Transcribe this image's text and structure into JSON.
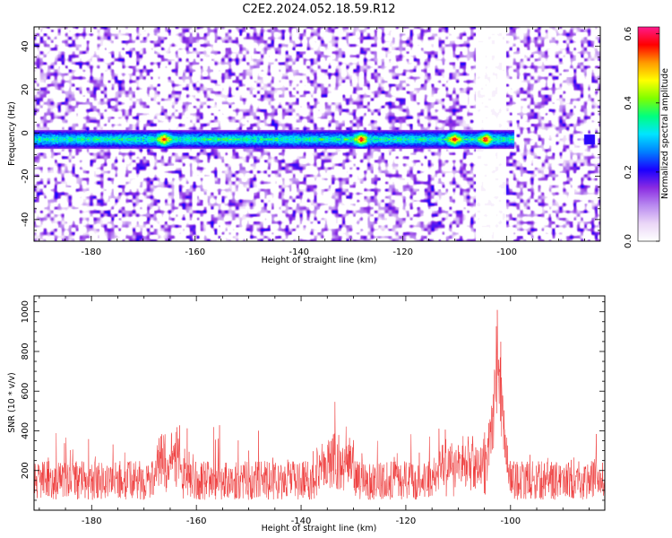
{
  "title": "C2E2.2024.052.18.59.R12",
  "chart_data": [
    {
      "type": "heatmap",
      "xlabel": "Height of straight line (km)",
      "ylabel": "Frequency (Hz)",
      "xlim": [
        -191,
        -82
      ],
      "ylim": [
        -50,
        49
      ],
      "xticks": [
        -180,
        -160,
        -140,
        -120,
        -100
      ],
      "yticks": [
        -40,
        -20,
        0,
        20,
        40
      ],
      "colorbar": {
        "label": "Normalized spectral amplitude",
        "range": [
          0.0,
          0.62
        ],
        "ticks": [
          "0.0",
          "0.2",
          "0.4",
          "0.6"
        ],
        "colors": [
          "#ffffff",
          "#ead6f7",
          "#b98af0",
          "#8a2be2",
          "#1a00ff",
          "#0080ff",
          "#00e5ff",
          "#00ff7f",
          "#7fff00",
          "#ffff00",
          "#ff9900",
          "#ff0000",
          "#ff1a8c"
        ]
      },
      "features": {
        "band_center_hz": -3,
        "band_halfwidth_hz": 3,
        "band_extent_km": [
          -191,
          -99
        ],
        "gap_km": [
          -106,
          -100
        ],
        "hotspots_km": [
          -166,
          -128,
          -110,
          -104
        ]
      }
    },
    {
      "type": "line",
      "xlabel": "Height of straight line (km)",
      "ylabel": "SNR (10 * v/v)",
      "xlim": [
        -191,
        -82
      ],
      "ylim": [
        0,
        1080
      ],
      "xticks": [
        -180,
        -160,
        -140,
        -120,
        -100
      ],
      "yticks": [
        200,
        400,
        600,
        800,
        1000
      ],
      "color": "#ee3333",
      "features": {
        "baseline_mean": 150,
        "peak_km": -102.5,
        "peak_value": 1070
      }
    }
  ]
}
